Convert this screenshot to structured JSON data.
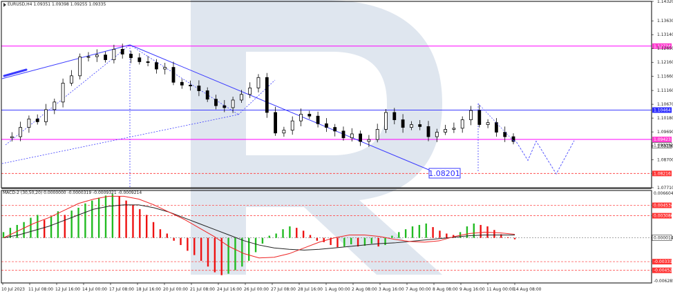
{
  "colors": {
    "frame": "#000000",
    "watermark": "#dfe6ef",
    "support_line": "#ff00ff",
    "resistance_line": "#3a3aff",
    "target_line": "#ff4d4d",
    "trend": "#3a3aff",
    "forecast": "#5a5aff",
    "candle": "#000000",
    "hist_up": "#22bb22",
    "hist_down": "#ee1111",
    "macd_signal": "#ee2222",
    "macd_line": "#222222",
    "tag_magenta": "#ff3ccf",
    "tag_blue": "#2a2aff",
    "tag_red": "#ff3333"
  },
  "chart_data": [
    {
      "type": "candlestick",
      "title": "EURUSD,H4  1.09351 1.09398 1.09255 1.09335",
      "ylim": [
        1.0771,
        1.1432
      ],
      "y_ticks": [
        "1.14320",
        "1.13630",
        "1.13140",
        "1.12650",
        "1.12160",
        "1.11660",
        "1.11160",
        "1.10670",
        "1.10180",
        "1.09690",
        "1.09190",
        "1.08700",
        "1.07710"
      ],
      "x_ticks": [
        "10 Jul 2023",
        "11 Jul 08:00",
        "12 Jul 16:00",
        "14 Jul 00:00",
        "17 Jul 08:00",
        "18 Jul 16:00",
        "20 Jul 00:00",
        "21 Jul 08:00",
        "24 Jul 16:00",
        "26 Jul 00:00",
        "27 Jul 08:00",
        "28 Jul 16:00",
        "1 Aug 00:00",
        "2 Aug 08:00",
        "3 Aug 16:00",
        "7 Aug 00:00",
        "8 Aug 08:00",
        "9 Aug 16:00",
        "11 Aug 00:00",
        "14 Aug 08:00"
      ],
      "close_path": [
        1.0948,
        1.0952,
        1.0985,
        1.1015,
        1.1005,
        1.1048,
        1.1075,
        1.1142,
        1.1168,
        1.1235,
        1.1236,
        1.1242,
        1.1225,
        1.1262,
        1.1245,
        1.1232,
        1.1218,
        1.1215,
        1.1192,
        1.1198,
        1.1145,
        1.1135,
        1.1132,
        1.1115,
        1.1085,
        1.1062,
        1.1055,
        1.1082,
        1.1102,
        1.1125,
        1.1162,
        1.1038,
        1.0965,
        1.0975,
        1.1008,
        1.1032,
        1.1025,
        1.0998,
        1.0985,
        1.0972,
        1.0948,
        1.0962,
        1.0935,
        1.0942,
        1.0978,
        1.1038,
        1.1012,
        1.0985,
        1.0995,
        1.0988,
        1.0952,
        1.0968,
        1.0978,
        1.0982,
        1.1012,
        1.1045,
        1.0995,
        1.1002,
        1.0968,
        1.0952,
        1.0935
      ],
      "horizontal_levels": [
        {
          "value": 1.12734,
          "label": "1.12734",
          "style": "solid",
          "color": "magenta"
        },
        {
          "value": 1.10464,
          "label": "1.10464",
          "style": "solid",
          "color": "blue"
        },
        {
          "value": 1.09423,
          "label": "1.09423",
          "style": "solid",
          "color": "magenta"
        },
        {
          "value": 1.09335,
          "label": "1.09335",
          "style": "price",
          "color": "black"
        },
        {
          "value": 1.08216,
          "label": "1.08216",
          "style": "dashed",
          "color": "red"
        }
      ],
      "annotation": "1.08201",
      "forecast_path": [
        1.0938,
        1.0935,
        1.0868,
        1.0936,
        1.082,
        1.0938
      ]
    },
    {
      "type": "bar",
      "title": "MACD-2 (30,50,20) 0.0000000 -0.0000319 -0.0009321 -0.0009214",
      "ylim": [
        -0.006285,
        0.006604
      ],
      "y_ticks": [
        "0.006604",
        "0.004534",
        "0.003086",
        "0.000014",
        "-0.003315",
        "-0.004525",
        "-0.006285"
      ],
      "levels": [
        {
          "value": 0.004534,
          "label": "0.004534"
        },
        {
          "value": 0.003086,
          "label": "0.003086"
        },
        {
          "value": 1.4e-05,
          "label": "0.000014"
        },
        {
          "value": -0.003315,
          "label": "-0.003315"
        },
        {
          "value": -0.004525,
          "label": "-0.004525"
        }
      ],
      "histogram": [
        0.0008,
        0.0014,
        0.0018,
        0.0022,
        0.0028,
        0.0032,
        0.0025,
        0.003,
        0.0037,
        0.0032,
        0.0038,
        0.0042,
        0.0048,
        0.0052,
        0.0056,
        0.0059,
        0.0061,
        0.0058,
        0.0052,
        0.0046,
        0.004,
        0.0032,
        0.0022,
        0.0012,
        0.0006,
        -0.0004,
        -0.001,
        -0.0018,
        -0.0024,
        -0.0032,
        -0.004,
        -0.0048,
        -0.0052,
        -0.005,
        -0.0045,
        -0.004,
        -0.0032,
        -0.002,
        -0.0008,
        0.0003,
        0.0006,
        0.0012,
        0.0016,
        0.0014,
        0.001,
        0.0004,
        -0.0004,
        -0.0006,
        -0.001,
        -0.0013,
        -0.0012,
        -0.0009,
        -0.0012,
        -0.0011,
        -0.0008,
        -0.0012,
        -0.001,
        0.0003,
        0.0008,
        0.0012,
        0.0016,
        0.0018,
        0.002,
        0.0015,
        0.001,
        0.0006,
        0.0004,
        0.0008,
        0.0016,
        0.002,
        0.0018,
        0.0016,
        0.0011,
        0.0005,
        0.0001,
        -0.0002
      ],
      "signal_line": [
        0.0,
        0.001,
        0.002,
        0.0028,
        0.0038,
        0.0048,
        0.0054,
        0.0058,
        0.0058,
        0.0054,
        0.0046,
        0.0036,
        0.0026,
        0.0014,
        0.0002,
        -0.0012,
        -0.0022,
        -0.0028,
        -0.0027,
        -0.0022,
        -0.0014,
        -0.0006,
        0.0,
        0.0004,
        0.0004,
        0.0002,
        -0.0002,
        -0.0005,
        -0.0006,
        -0.0004,
        0.0002,
        0.0006,
        0.0008,
        0.0007,
        0.0005
      ],
      "macd_line": [
        0.0,
        0.0004,
        0.001,
        0.0016,
        0.0024,
        0.0032,
        0.004,
        0.0044,
        0.0046,
        0.0046,
        0.0042,
        0.0036,
        0.0028,
        0.002,
        0.0012,
        0.0004,
        -0.0004,
        -0.001,
        -0.0014,
        -0.0016,
        -0.0017,
        -0.0016,
        -0.0014,
        -0.0012,
        -0.001,
        -0.0008,
        -0.0007,
        -0.0005,
        -0.0003,
        -0.0001,
        0.0001,
        0.0003,
        0.0004,
        0.0004,
        0.0004
      ]
    }
  ]
}
